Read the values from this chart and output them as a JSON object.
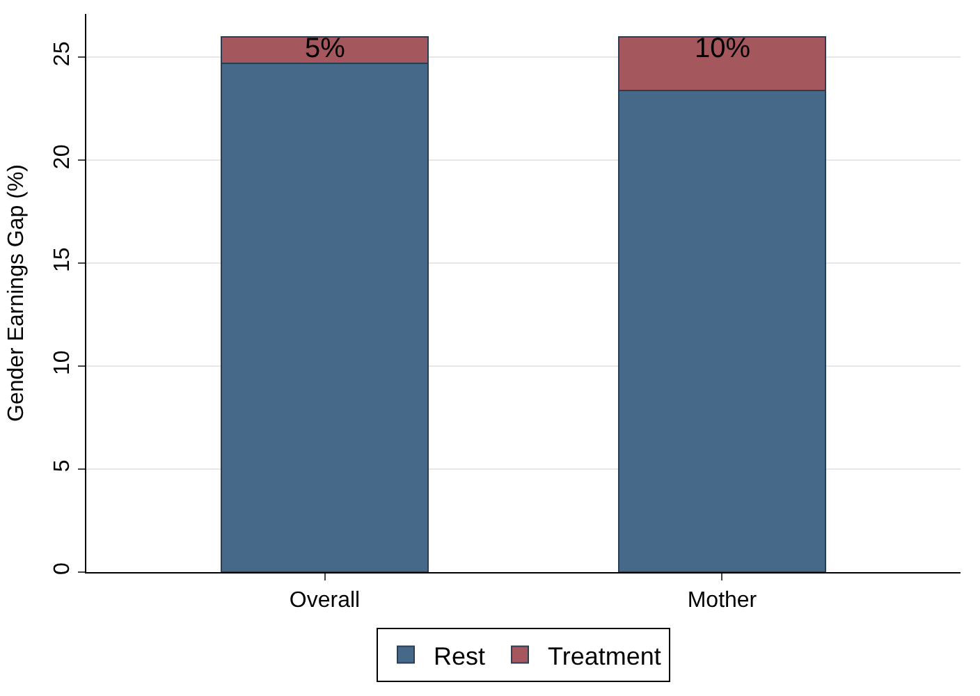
{
  "chart_data": {
    "type": "bar",
    "stacked": true,
    "categories": [
      "Overall",
      "Mother"
    ],
    "ylabel": "Gender Earnings Gap (%)",
    "ylim": [
      0,
      27.1
    ],
    "yticks": [
      0,
      5,
      10,
      15,
      20,
      25
    ],
    "grid": "y",
    "legend": "bottom",
    "series": [
      {
        "name": "Rest",
        "color": "#46698a",
        "values": [
          24.7,
          23.4
        ]
      },
      {
        "name": "Treatment",
        "color": "#a4575c",
        "values": [
          1.3,
          2.6
        ]
      }
    ],
    "annotations": [
      {
        "text": "5%",
        "x": "Overall",
        "y": 26
      },
      {
        "text": "10%",
        "x": "Mother",
        "y": 26
      }
    ]
  }
}
